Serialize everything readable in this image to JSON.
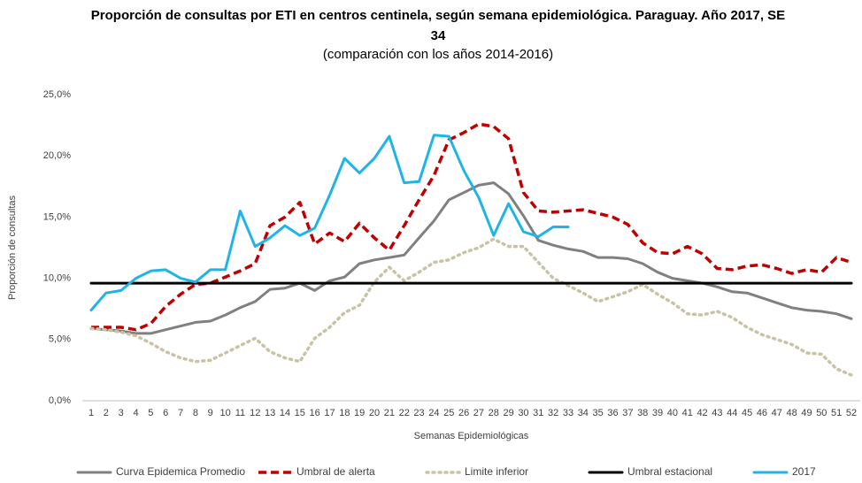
{
  "chart_data": {
    "type": "line",
    "title": "Proporción de consultas por ETI en centros centinela, según semana epidemiológica. Paraguay.  Año 2017, SE 34",
    "subtitle": "(comparación con los años 2014-2016)",
    "x_label": "Semanas Epidemiológicas",
    "y_label": "Proporción de consultas",
    "categories": [
      "1",
      "2",
      "3",
      "4",
      "5",
      "6",
      "7",
      "8",
      "9",
      "10",
      "11",
      "12",
      "13",
      "14",
      "15",
      "16",
      "17",
      "18",
      "19",
      "20",
      "21",
      "22",
      "23",
      "24",
      "25",
      "26",
      "27",
      "28",
      "29",
      "30",
      "31",
      "32",
      "33",
      "34",
      "35",
      "36",
      "37",
      "38",
      "39",
      "40",
      "41",
      "42",
      "43",
      "44",
      "45",
      "46",
      "47",
      "48",
      "49",
      "50",
      "51",
      "52"
    ],
    "ylim": [
      0,
      25
    ],
    "yticks": [
      {
        "value": 0,
        "label": "0,0%"
      },
      {
        "value": 5,
        "label": "5,0%"
      },
      {
        "value": 10,
        "label": "10,0%"
      },
      {
        "value": 15,
        "label": "15,0%"
      },
      {
        "value": 20,
        "label": "20,0%"
      },
      {
        "value": 25,
        "label": "25,0%"
      }
    ],
    "grid": false,
    "legend": "bottom",
    "series": [
      {
        "name": "Curva Epidemica Promedio",
        "color": "#808080",
        "style": "solid",
        "values": [
          5.9,
          5.8,
          5.7,
          5.5,
          5.5,
          5.8,
          6.1,
          6.4,
          6.5,
          7.0,
          7.6,
          8.1,
          9.1,
          9.2,
          9.6,
          9.0,
          9.8,
          10.1,
          11.2,
          11.5,
          11.7,
          11.9,
          13.3,
          14.7,
          16.4,
          17.0,
          17.6,
          17.8,
          16.9,
          15.1,
          13.1,
          12.7,
          12.4,
          12.2,
          11.7,
          11.7,
          11.6,
          11.2,
          10.5,
          10.0,
          9.8,
          9.6,
          9.3,
          8.9,
          8.8,
          8.4,
          8.0,
          7.6,
          7.4,
          7.3,
          7.1,
          6.7
        ]
      },
      {
        "name": "Umbral de alerta",
        "color": "#c00000",
        "style": "dashed",
        "values": [
          6.0,
          6.0,
          6.0,
          5.8,
          6.3,
          7.7,
          8.7,
          9.5,
          9.6,
          10.1,
          10.6,
          11.2,
          14.3,
          15.0,
          16.2,
          12.8,
          13.7,
          13.0,
          14.5,
          13.3,
          12.3,
          14.3,
          16.4,
          18.4,
          21.3,
          21.9,
          22.6,
          22.4,
          21.4,
          17.0,
          15.5,
          15.4,
          15.5,
          15.6,
          15.3,
          15.0,
          14.4,
          12.9,
          12.1,
          12.0,
          12.6,
          12.0,
          10.8,
          10.7,
          11.0,
          11.1,
          10.8,
          10.4,
          10.7,
          10.5,
          11.7,
          11.3
        ]
      },
      {
        "name": "Limite inferior",
        "color": "#c9c3a6",
        "style": "dotted",
        "values": [
          5.9,
          5.8,
          5.6,
          5.3,
          4.7,
          4.0,
          3.5,
          3.2,
          3.3,
          3.9,
          4.5,
          5.1,
          4.0,
          3.5,
          3.2,
          5.1,
          6.0,
          7.2,
          7.8,
          9.7,
          10.9,
          9.8,
          10.5,
          11.3,
          11.5,
          12.1,
          12.5,
          13.2,
          12.6,
          12.6,
          11.3,
          10.0,
          9.4,
          8.8,
          8.1,
          8.5,
          8.9,
          9.5,
          8.7,
          8.0,
          7.1,
          7.0,
          7.3,
          6.8,
          6.0,
          5.4,
          5.0,
          4.6,
          3.9,
          3.8,
          2.6,
          2.1
        ]
      },
      {
        "name": "Umbral estacional",
        "color": "#000000",
        "style": "solid",
        "values": [
          9.6,
          9.6,
          9.6,
          9.6,
          9.6,
          9.6,
          9.6,
          9.6,
          9.6,
          9.6,
          9.6,
          9.6,
          9.6,
          9.6,
          9.6,
          9.6,
          9.6,
          9.6,
          9.6,
          9.6,
          9.6,
          9.6,
          9.6,
          9.6,
          9.6,
          9.6,
          9.6,
          9.6,
          9.6,
          9.6,
          9.6,
          9.6,
          9.6,
          9.6,
          9.6,
          9.6,
          9.6,
          9.6,
          9.6,
          9.6,
          9.6,
          9.6,
          9.6,
          9.6,
          9.6,
          9.6,
          9.6,
          9.6,
          9.6,
          9.6,
          9.6,
          9.6
        ]
      },
      {
        "name": "2017",
        "color": "#1fb4e8",
        "style": "solid",
        "values": [
          7.4,
          8.8,
          9.0,
          10.0,
          10.6,
          10.7,
          10.0,
          9.7,
          10.7,
          10.7,
          15.5,
          12.6,
          13.3,
          14.3,
          13.5,
          14.1,
          16.8,
          19.8,
          18.6,
          19.8,
          21.6,
          17.8,
          17.9,
          21.7,
          21.6,
          18.8,
          16.6,
          13.5,
          16.1,
          13.8,
          13.4,
          14.2,
          14.2,
          null,
          null,
          null,
          null,
          null,
          null,
          null,
          null,
          null,
          null,
          null,
          null,
          null,
          null,
          null,
          null,
          null,
          null,
          null
        ]
      }
    ]
  }
}
